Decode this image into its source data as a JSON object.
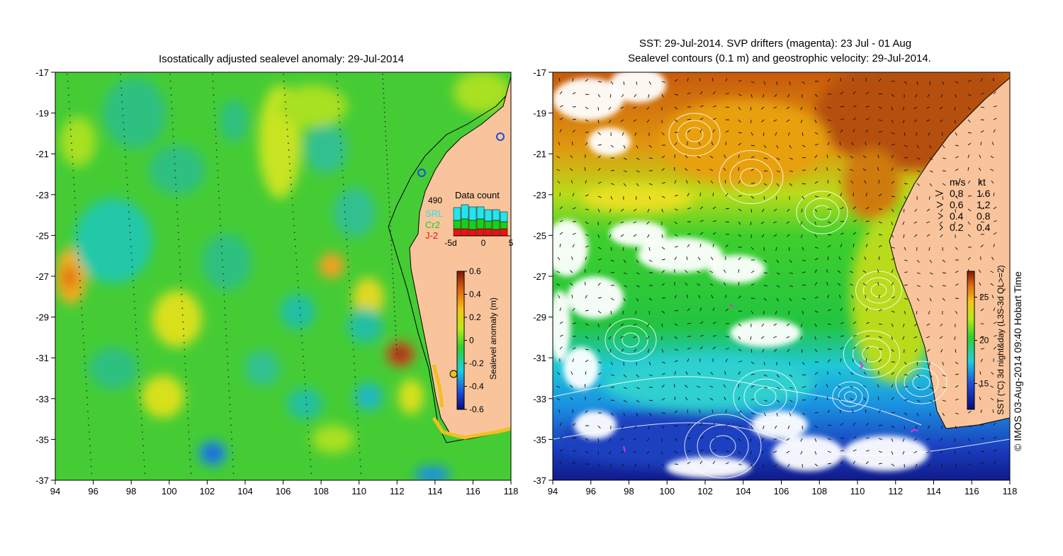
{
  "left_map": {
    "title": "Isostatically adjusted sealevel anomaly: 29-Jul-2014",
    "x_ticks": [
      "94",
      "96",
      "98",
      "100",
      "102",
      "104",
      "106",
      "108",
      "110",
      "112",
      "114",
      "116",
      "118"
    ],
    "y_ticks": [
      "-17",
      "-19",
      "-21",
      "-23",
      "-25",
      "-27",
      "-29",
      "-31",
      "-33",
      "-35",
      "-37"
    ],
    "colorbar": {
      "label": "Sealevel anomaly (m)",
      "ticks": [
        "0.6",
        "0.4",
        "0.2",
        "0",
        "-0.2",
        "-0.4",
        "-0.6"
      ],
      "range": [
        -0.6,
        0.6
      ]
    },
    "data_count": {
      "title": "Data count",
      "total": "490",
      "series": [
        {
          "name": "SRL",
          "color": "#22e5f0"
        },
        {
          "name": "Cr2",
          "color": "#19d019"
        },
        {
          "name": "J-2",
          "color": "#ee1111"
        }
      ],
      "x_ticks": [
        "-5d",
        "0",
        "5"
      ]
    }
  },
  "right_map": {
    "title_line1": "SST: 29-Jul-2014. SVP drifters (magenta): 23 Jul - 01 Aug",
    "title_line2": "Sealevel contours (0.1 m) and geostrophic velocity: 29-Jul-2014.",
    "x_ticks": [
      "94",
      "96",
      "98",
      "100",
      "102",
      "104",
      "106",
      "108",
      "110",
      "112",
      "114",
      "116",
      "118"
    ],
    "y_ticks": [
      "-17",
      "-19",
      "-21",
      "-23",
      "-25",
      "-27",
      "-29",
      "-31",
      "-33",
      "-35",
      "-37"
    ],
    "velocity_legend": {
      "header_ms": "m/s",
      "header_kt": "kt",
      "rows": [
        {
          "ms": "0.8",
          "kt": "1.6"
        },
        {
          "ms": "0.6",
          "kt": "1.2"
        },
        {
          "ms": "0.4",
          "kt": "0.8"
        },
        {
          "ms": "0.2",
          "kt": "0.4"
        }
      ]
    },
    "colorbar": {
      "label": "SST (°C) 3d night&day (L3S-3d QL>=2)",
      "ticks": [
        "25",
        "20",
        "15"
      ],
      "range": [
        12,
        28
      ]
    }
  },
  "credit": "© IMOS 03-Aug-2014 09:40 Hobart Time",
  "colors": {
    "land": "#f9c49c",
    "ocean_green": "#4ccd3a",
    "sst_warm": "#d9700c",
    "sst_cold": "#1a3fbf"
  }
}
